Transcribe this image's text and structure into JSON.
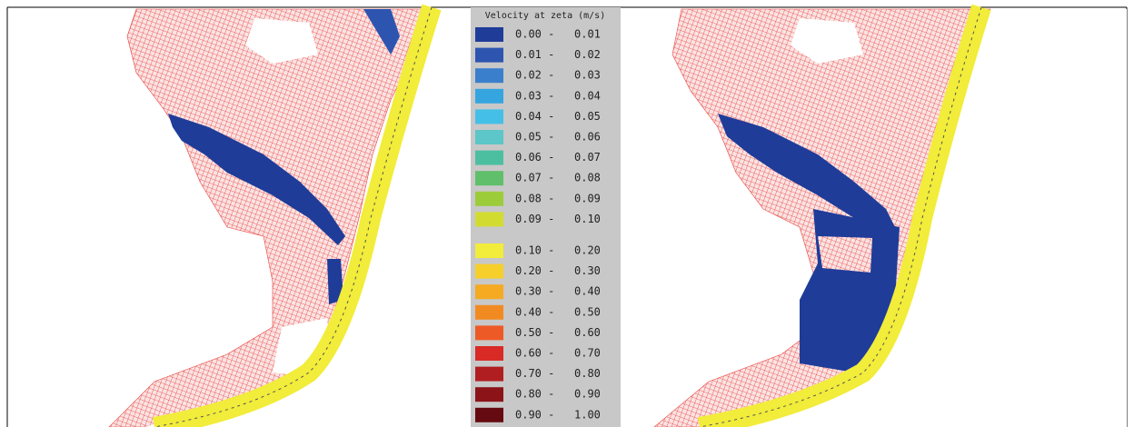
{
  "legend": {
    "title": "Velocity at zeta (m/s)",
    "items": [
      {
        "from": "0.00 -",
        "to": "0.01",
        "color": "#1f3c99"
      },
      {
        "from": "0.01 -",
        "to": "0.02",
        "color": "#2d55b0"
      },
      {
        "from": "0.02 -",
        "to": "0.03",
        "color": "#3a7fcc"
      },
      {
        "from": "0.03 -",
        "to": "0.04",
        "color": "#35a5e0"
      },
      {
        "from": "0.04 -",
        "to": "0.05",
        "color": "#44c0e8"
      },
      {
        "from": "0.05 -",
        "to": "0.06",
        "color": "#5cc6c8"
      },
      {
        "from": "0.06 -",
        "to": "0.07",
        "color": "#4cbfa0"
      },
      {
        "from": "0.07 -",
        "to": "0.08",
        "color": "#5fbf6a"
      },
      {
        "from": "0.08 -",
        "to": "0.09",
        "color": "#9ccc3a"
      },
      {
        "from": "0.09 -",
        "to": "0.10",
        "color": "#d2dc30"
      },
      {
        "from": "0.10 -",
        "to": "0.20",
        "color": "#f2ec3a"
      },
      {
        "from": "0.20 -",
        "to": "0.30",
        "color": "#f6cf2a"
      },
      {
        "from": "0.30 -",
        "to": "0.40",
        "color": "#f5aa22"
      },
      {
        "from": "0.40 -",
        "to": "0.50",
        "color": "#f28a22"
      },
      {
        "from": "0.50 -",
        "to": "0.60",
        "color": "#ee5a26"
      },
      {
        "from": "0.60 -",
        "to": "0.70",
        "color": "#d92a26"
      },
      {
        "from": "0.70 -",
        "to": "0.80",
        "color": "#b01e22"
      },
      {
        "from": "0.80 -",
        "to": "0.90",
        "color": "#8c1419"
      },
      {
        "from": "0.90 -",
        "to": "1.00",
        "color": "#650a10"
      }
    ]
  }
}
